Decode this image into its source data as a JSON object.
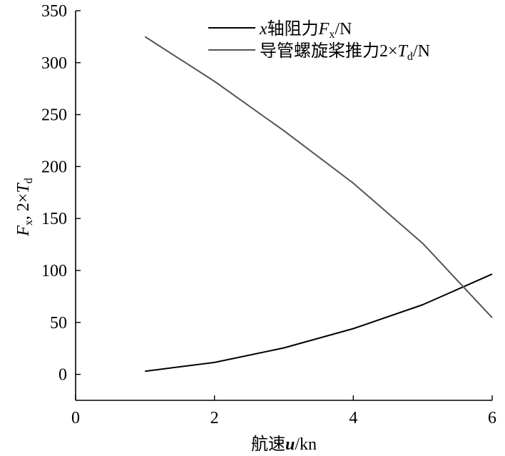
{
  "chart_data": {
    "type": "line",
    "title": "",
    "xlim": [
      0,
      6
    ],
    "ylim": [
      -25,
      350
    ],
    "x_ticks": [
      0,
      2,
      4,
      6
    ],
    "y_ticks": [
      0,
      50,
      100,
      150,
      200,
      250,
      300,
      350
    ],
    "xlabel": {
      "prefix": "航速",
      "var": "u",
      "suffix": "/kn"
    },
    "ylabel": {
      "part1": "F",
      "sub1": "x",
      "mid": ", 2×",
      "part2": "T",
      "sub2": "d"
    },
    "grid": false,
    "legend_position": "top-center",
    "series": [
      {
        "name": "x轴阻力Fx/N",
        "legend": {
          "var": "x",
          "text": "轴阻力",
          "sym": "F",
          "sub": "x",
          "unit": "/N"
        },
        "color": "#000000",
        "x": [
          1,
          2,
          3,
          4,
          5,
          6
        ],
        "y": [
          3,
          11.5,
          25.5,
          44,
          67,
          96.5
        ]
      },
      {
        "name": "导管螺旋桨推力2×Td/N",
        "legend": {
          "text": "导管螺旋桨推力2×",
          "sym": "T",
          "sub": "d",
          "unit": "/N"
        },
        "color": "#555555",
        "x": [
          1,
          2,
          3,
          4,
          5,
          6
        ],
        "y": [
          325,
          282,
          234.5,
          184,
          126,
          54.5
        ]
      }
    ]
  }
}
